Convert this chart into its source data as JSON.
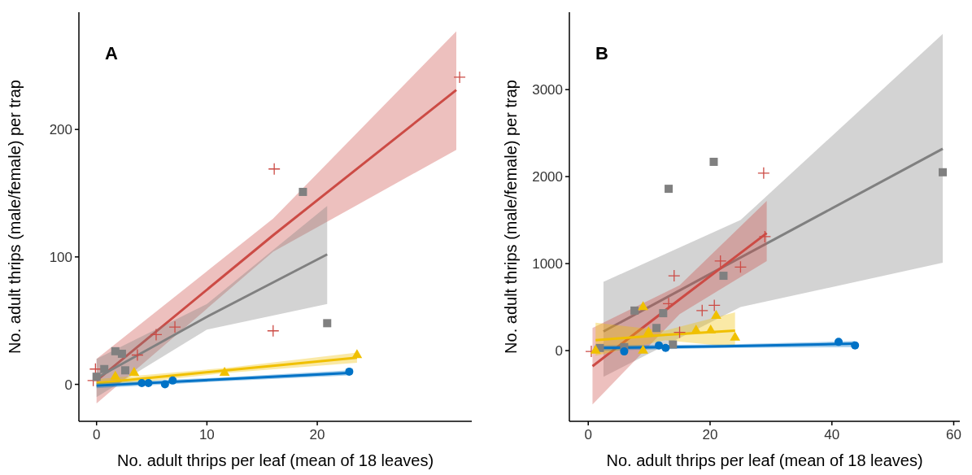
{
  "chart_data": [
    {
      "type": "scatter",
      "title": "A",
      "xlabel": "No. adult thrips per leaf (mean of 18 leaves)",
      "ylabel": "No. adult thrips (male/female) per trap",
      "xlim": [
        -1.6,
        34
      ],
      "ylim": [
        -29,
        292
      ],
      "xticks": [
        0,
        10,
        20
      ],
      "yticks": [
        0,
        100,
        200
      ],
      "grid": false,
      "series": [
        {
          "type": "line",
          "color": "#cc4b45",
          "marker": "none",
          "x": [
            0,
            16,
            32.6
          ],
          "values": [
            3,
            117,
            231
          ],
          "lower": [
            -15,
            104,
            184
          ],
          "upper": [
            20,
            130,
            277
          ]
        },
        {
          "type": "line",
          "color": "#808080",
          "marker": "none",
          "x": [
            0,
            10,
            20.9
          ],
          "values": [
            5,
            53,
            102
          ],
          "lower": [
            -10,
            43,
            63
          ],
          "upper": [
            20,
            63,
            140
          ]
        },
        {
          "type": "line",
          "color": "#f0c000",
          "marker": "none",
          "x": [
            0,
            11.8,
            23.6
          ],
          "values": [
            1,
            11,
            21
          ],
          "lower": [
            -2,
            9,
            17
          ],
          "upper": [
            4,
            13,
            25
          ]
        },
        {
          "type": "line",
          "color": "#0072c6",
          "marker": "none",
          "x": [
            0,
            11.5,
            22.9
          ],
          "values": [
            -1,
            4,
            9
          ],
          "lower": [
            -3,
            2.5,
            7
          ],
          "upper": [
            1,
            5.5,
            11
          ]
        },
        {
          "type": "scatter",
          "color": "#cc4b45",
          "marker": "cross",
          "x": [
            32.9,
            16.1,
            16,
            7.1,
            5.4,
            3.7,
            -0.1,
            -0.3
          ],
          "values": [
            241,
            169,
            42,
            45,
            39,
            23,
            12,
            3
          ]
        },
        {
          "type": "scatter",
          "color": "#808080",
          "marker": "square",
          "x": [
            20.9,
            18.7,
            1.7,
            2.3,
            0.7,
            2.6,
            0
          ],
          "values": [
            48,
            151,
            26,
            24,
            12,
            11,
            6
          ]
        },
        {
          "type": "scatter",
          "color": "#f0c000",
          "marker": "triangle",
          "x": [
            11.6,
            23.6,
            1.7,
            3.4
          ],
          "values": [
            9,
            23,
            6,
            9
          ]
        },
        {
          "type": "scatter",
          "color": "#0072c6",
          "marker": "circle",
          "x": [
            4.1,
            4.7,
            6.2,
            6.9,
            22.9
          ],
          "values": [
            1,
            1,
            0,
            3,
            10
          ]
        }
      ]
    },
    {
      "type": "scatter",
      "title": "B",
      "xlabel": "No. adult thrips per leaf (mean of 18 leaves)",
      "ylabel": "No. adult thrips (male/female) per trap",
      "xlim": [
        -3.1,
        61
      ],
      "ylim": [
        -813,
        3890
      ],
      "xticks": [
        0,
        20,
        40,
        60
      ],
      "yticks": [
        0,
        1000,
        2000,
        3000
      ],
      "grid": false,
      "series": [
        {
          "type": "line",
          "color": "#808080",
          "marker": "none",
          "x": [
            2.5,
            25,
            58.2
          ],
          "values": [
            220,
            1070,
            2320
          ],
          "lower": [
            -300,
            500,
            1010
          ],
          "upper": [
            790,
            1500,
            3640
          ]
        },
        {
          "type": "line",
          "color": "#cc4b45",
          "marker": "none",
          "x": [
            0.7,
            15,
            29.3
          ],
          "values": [
            -180,
            590,
            1350
          ],
          "lower": [
            -620,
            420,
            1030
          ],
          "upper": [
            260,
            750,
            1720
          ]
        },
        {
          "type": "line",
          "color": "#f0c000",
          "marker": "none",
          "x": [
            1.2,
            12.6,
            24.1
          ],
          "values": [
            120,
            180,
            230
          ],
          "lower": [
            -60,
            120,
            40
          ],
          "upper": [
            320,
            230,
            440
          ]
        },
        {
          "type": "line",
          "color": "#0072c6",
          "marker": "none",
          "x": [
            1,
            22.4,
            43.8
          ],
          "values": [
            30,
            50,
            80
          ],
          "lower": [
            0,
            30,
            40
          ],
          "upper": [
            60,
            70,
            110
          ]
        },
        {
          "type": "scatter",
          "color": "#808080",
          "marker": "square",
          "x": [
            20.6,
            13.2,
            22.2,
            7.6,
            12.3,
            11.2,
            13.9,
            58.2,
            1.9,
            5.9
          ],
          "values": [
            2170,
            1860,
            860,
            460,
            430,
            260,
            70,
            2050,
            30,
            40
          ]
        },
        {
          "type": "scatter",
          "color": "#cc4b45",
          "marker": "cross",
          "x": [
            28.8,
            21.7,
            25,
            14.1,
            13.2,
            18.7,
            20.7,
            15,
            0.5,
            29
          ],
          "values": [
            2040,
            1030,
            960,
            860,
            540,
            460,
            520,
            210,
            -10,
            1310
          ]
        },
        {
          "type": "scatter",
          "color": "#f0c000",
          "marker": "triangle",
          "x": [
            21,
            17.7,
            20.1,
            24.1,
            9,
            9.9,
            9,
            1.2
          ],
          "values": [
            400,
            230,
            230,
            150,
            500,
            210,
            0,
            0
          ]
        },
        {
          "type": "scatter",
          "color": "#0072c6",
          "marker": "circle",
          "x": [
            41.1,
            43.8,
            5.9,
            12.7,
            11.6
          ],
          "values": [
            100,
            60,
            -10,
            30,
            60
          ]
        }
      ]
    }
  ]
}
